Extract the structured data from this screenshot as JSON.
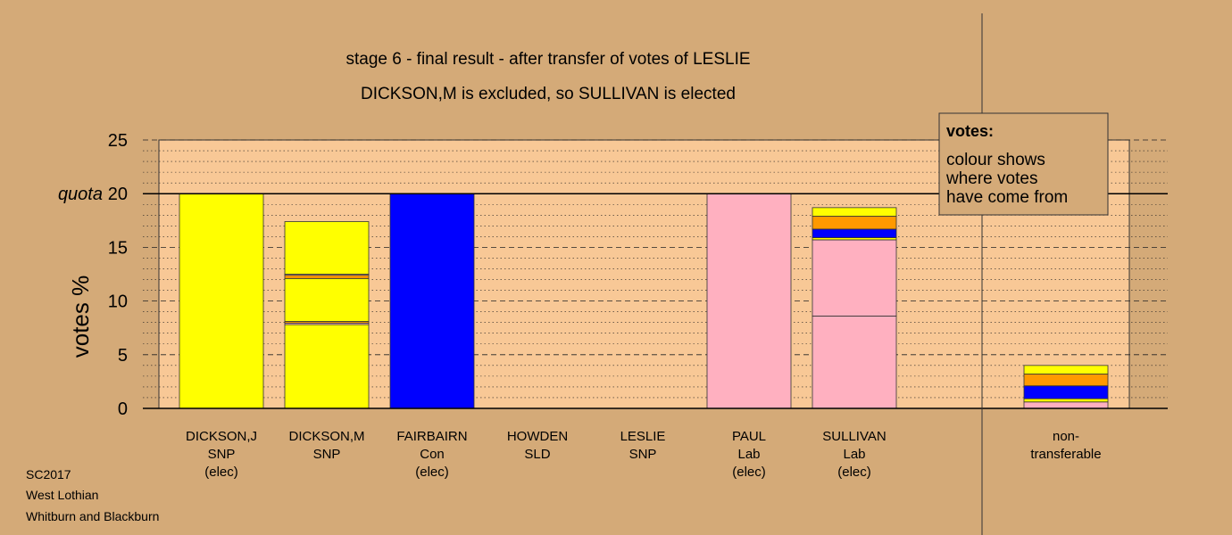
{
  "title_line1": "stage 6 - final result - after transfer of votes of LESLIE",
  "title_line2": "DICKSON,M is excluded, so SULLIVAN is elected",
  "footer": [
    "SC2017",
    "West Lothian",
    "Whitburn and Blackburn"
  ],
  "legend": {
    "title": "votes:",
    "lines": [
      "colour shows",
      "where votes",
      "have come from"
    ]
  },
  "colors": {
    "background": "#d4aa78",
    "plot_area": "#f8c896",
    "SNP": "#ffff00",
    "Con": "#0000ff",
    "Lab": "#ffb0c0",
    "SLD": "#ff9900"
  },
  "chart_data": {
    "type": "bar",
    "stacked": true,
    "ylabel": "votes %",
    "ylim": [
      0,
      25
    ],
    "yticks": [
      0,
      5,
      10,
      15,
      20,
      25
    ],
    "quota": 20,
    "quota_label": "quota",
    "grid": "dashed major, dotted minor",
    "legend_placement": "top-right",
    "bars": [
      {
        "lines": [
          "DICKSON,J",
          "SNP",
          "(elec)"
        ],
        "segments": [
          {
            "from": "SNP",
            "value": 20.0
          }
        ]
      },
      {
        "lines": [
          "DICKSON,M",
          "SNP"
        ],
        "segments": [
          {
            "from": "SNP",
            "value": 7.8
          },
          {
            "from": "Lab",
            "value": 0.15
          },
          {
            "from": "SLD",
            "value": 0.15
          },
          {
            "from": "SNP",
            "value": 4.0
          },
          {
            "from": "SLD",
            "value": 0.3
          },
          {
            "from": "Lab",
            "value": 0.1
          },
          {
            "from": "SNP",
            "value": 4.9
          }
        ]
      },
      {
        "lines": [
          "FAIRBAIRN",
          "Con",
          "(elec)"
        ],
        "segments": [
          {
            "from": "Con",
            "value": 20.0
          }
        ]
      },
      {
        "lines": [
          "HOWDEN",
          "SLD"
        ],
        "segments": []
      },
      {
        "lines": [
          "LESLIE",
          "SNP"
        ],
        "segments": []
      },
      {
        "lines": [
          "PAUL",
          "Lab",
          "(elec)"
        ],
        "segments": [
          {
            "from": "Lab",
            "value": 20.0
          }
        ]
      },
      {
        "lines": [
          "SULLIVAN",
          "Lab",
          "(elec)"
        ],
        "segments": [
          {
            "from": "Lab",
            "value": 8.6
          },
          {
            "from": "Lab",
            "value": 7.1
          },
          {
            "from": "SNP",
            "value": 0.2
          },
          {
            "from": "Con",
            "value": 0.8
          },
          {
            "from": "SLD",
            "value": 1.2
          },
          {
            "from": "SNP",
            "value": 0.8
          }
        ]
      },
      {
        "lines": [
          "non-",
          "transferable"
        ],
        "segments": [
          {
            "from": "Lab",
            "value": 0.6
          },
          {
            "from": "SNP",
            "value": 0.3
          },
          {
            "from": "Con",
            "value": 1.2
          },
          {
            "from": "SLD",
            "value": 1.1
          },
          {
            "from": "SNP",
            "value": 0.8
          }
        ]
      }
    ]
  }
}
